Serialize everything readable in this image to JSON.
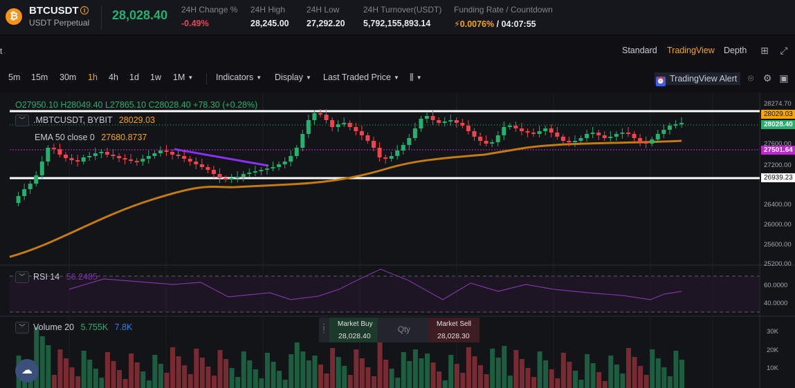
{
  "ticker": {
    "coin_glyph": "₿",
    "symbol": "BTCUSDT",
    "subtitle": "USDT Perpetual",
    "last_price": "28,028.40",
    "stats": [
      {
        "label": "24H Change %",
        "value": "-0.49%"
      },
      {
        "label": "24H High",
        "value": "28,245.00"
      },
      {
        "label": "24H Low",
        "value": "27,292.20"
      },
      {
        "label": "24H Turnover(USDT)",
        "value": "5,792,155,893.14"
      },
      {
        "label": "Funding Rate / Countdown",
        "value": "0.0076%",
        "countdown": "/ 04:07:55"
      }
    ]
  },
  "header": {
    "left_text": "t",
    "views": [
      "Standard",
      "TradingView",
      "Depth"
    ],
    "active_view": "TradingView"
  },
  "toolbar": {
    "timeframes": [
      "5m",
      "15m",
      "30m",
      "1h",
      "4h",
      "1d",
      "1w",
      "1M"
    ],
    "active_timeframe": "1h",
    "dropdowns": [
      "Indicators",
      "Display",
      "Last Traded Price"
    ],
    "alert_label": "TradingView Alert"
  },
  "legend": {
    "ohlc": "O27950.10  H28049.40  L27865.10  C28028.40  +78.30 (+0.28%)",
    "symbol_row": ".MBTCUSDT, BYBIT",
    "symbol_value": "28029.03",
    "ema_label": "EMA 50 close 0",
    "ema_value": "27680.8737",
    "rsi_label": "RSI 14",
    "rsi_value": "56.2485",
    "volume_label": "Volume 20",
    "volume_v1": "5.755K",
    "volume_v2": "7.8K"
  },
  "price_axis": {
    "labels": [
      "28274.70",
      "27600.00",
      "27200.00",
      "26400.00",
      "26000.00",
      "25600.00",
      "25200.00"
    ],
    "tags": [
      {
        "text": "28029.03",
        "color": "#f7a600"
      },
      {
        "text": "28028.40",
        "color": "#25b06e"
      },
      {
        "text": "27501.64",
        "color": "#c026d3"
      },
      {
        "text": "26939.23",
        "color": "#ffffff"
      }
    ]
  },
  "rsi_axis": {
    "labels": [
      "60.0000",
      "40.0000"
    ]
  },
  "volume_axis": {
    "labels": [
      "30K",
      "20K",
      "10K"
    ]
  },
  "market": {
    "buy_label": "Market Buy",
    "buy_price": "28,028.40",
    "qty_label": "Qty",
    "sell_label": "Market Sell",
    "sell_price": "28,028.30"
  },
  "colors": {
    "up": "#25b06e",
    "down": "#f0434e",
    "ema": "#c47b12",
    "accent": "#f7a600"
  }
}
